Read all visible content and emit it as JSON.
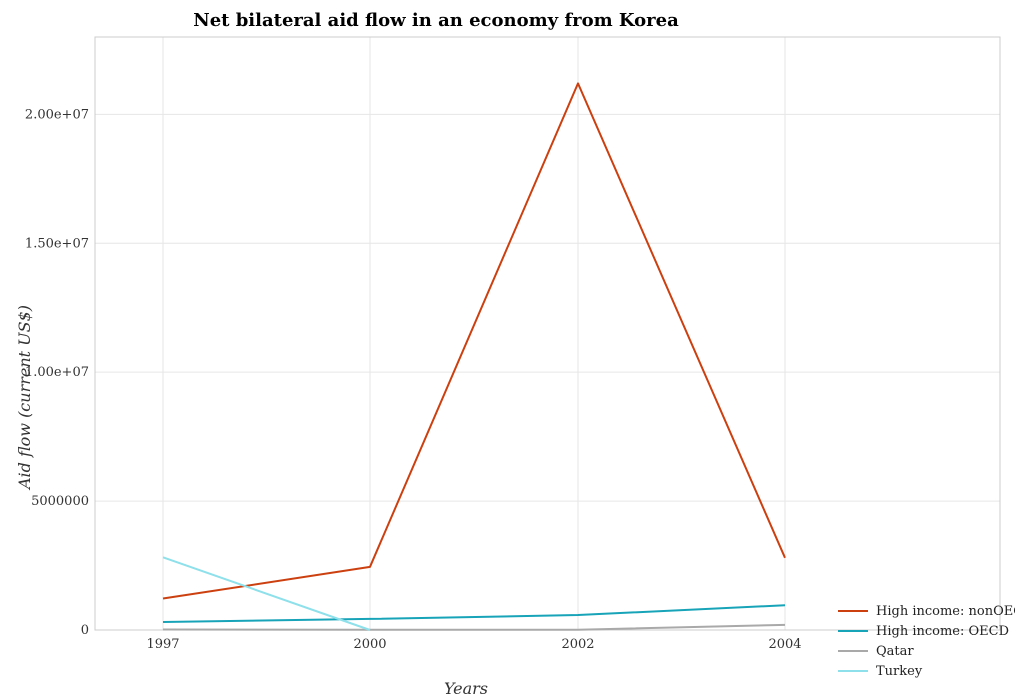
{
  "chart_data": {
    "type": "line",
    "title": "Net bilateral aid flow in an economy from Korea",
    "xlabel": "Years",
    "ylabel": "Aid flow (current US$)",
    "categories": [
      "1997",
      "2000",
      "2002",
      "2004"
    ],
    "ylim": [
      0,
      23000000
    ],
    "yticks": [
      0,
      5000000,
      10000000,
      15000000,
      20000000
    ],
    "ytick_labels": [
      "0",
      "5000000",
      "1.00e+07",
      "1.50e+07",
      "2.00e+07"
    ],
    "grid": true,
    "legend_position": "bottom-right",
    "series": [
      {
        "name": "High income: nonOECD",
        "color": "#cc4010",
        "values": [
          1220000,
          2450000,
          21200000,
          2800000
        ]
      },
      {
        "name": "High income: OECD",
        "color": "#17a3b8",
        "values": [
          310000,
          430000,
          580000,
          960000
        ]
      },
      {
        "name": "Qatar",
        "color": "#a9a9a9",
        "values": [
          20000,
          10000,
          10000,
          200000
        ]
      },
      {
        "name": "Turkey",
        "color": "#8ee0ea",
        "values": [
          2820000,
          0,
          null,
          null
        ]
      }
    ]
  }
}
